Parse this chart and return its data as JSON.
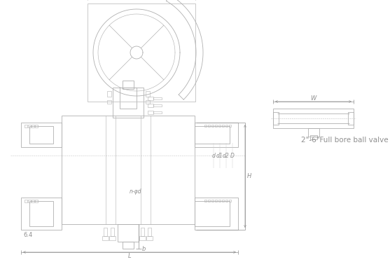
{
  "bg_color": "#ffffff",
  "line_color": "#b0b0b0",
  "dim_color": "#aaaaaa",
  "text_color": "#909090",
  "title_text": "2\"-6\"Full bore ball valve",
  "label_W_top": "W",
  "label_H": "H",
  "label_L": "L",
  "label_b": "b",
  "label_d": "d",
  "label_d1": "d1",
  "label_d2": "d2",
  "label_D": "D",
  "label_np": "n-φd",
  "label_64": "6.4",
  "label_W_side": "W",
  "figsize": [
    5.57,
    3.74
  ],
  "dpi": 100
}
